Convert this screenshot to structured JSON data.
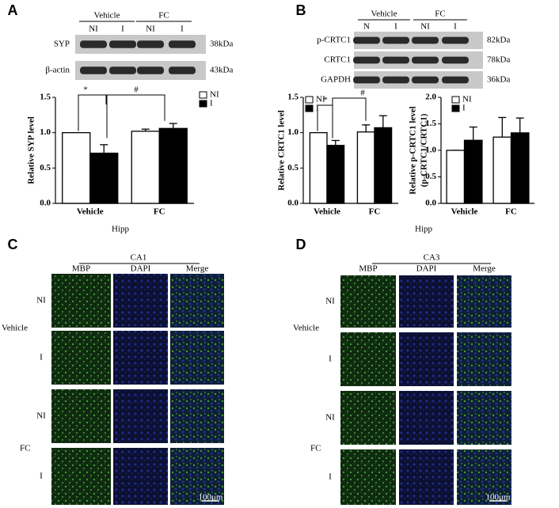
{
  "panels": [
    "A",
    "B",
    "C",
    "D"
  ],
  "blots": [
    {
      "groups": [
        "Vehicle",
        "FC"
      ],
      "lanes": [
        "NI",
        "I",
        "NI",
        "I"
      ],
      "rows": [
        {
          "label": "SYP",
          "size": "38kDa"
        },
        {
          "label": "β-actin",
          "size": "43kDa"
        }
      ]
    },
    {
      "groups": [
        "Vehicle",
        "FC"
      ],
      "lanes": [
        "N",
        "I",
        "NI",
        "I"
      ],
      "rows": [
        {
          "label": "p-CRTC1",
          "size": "82kDa"
        },
        {
          "label": "CRTC1",
          "size": "78kDa"
        },
        {
          "label": "GAPDH",
          "size": "36kDa"
        }
      ]
    }
  ],
  "chart_data": [
    {
      "type": "bar",
      "ylabel": [
        "Relative SYP level"
      ],
      "xlabel": "Hipp",
      "categories": [
        "Vehicle",
        "FC"
      ],
      "series": [
        {
          "name": "NI",
          "color": "#ffffff",
          "values": [
            1.0,
            1.02
          ],
          "errors": [
            0,
            0.03
          ]
        },
        {
          "name": "I",
          "color": "#000000",
          "values": [
            0.71,
            1.06
          ],
          "errors": [
            0.12,
            0.07
          ]
        }
      ],
      "ylim": [
        0,
        1.5
      ],
      "yticks": [
        {
          "value": 0,
          "label": "0.0"
        },
        0.5,
        {
          "value": 1,
          "label": "1.0"
        },
        1.5
      ],
      "legend": "top-right",
      "annotations": [
        "*",
        "#"
      ]
    },
    {
      "type": "bar",
      "ylabel": [
        "Relative CRTC1 level"
      ],
      "xlabel": "Hipp",
      "categories": [
        "Vehicle",
        "FC"
      ],
      "series": [
        {
          "name": "NI",
          "color": "#ffffff",
          "values": [
            1.0,
            1.01
          ],
          "errors": [
            0,
            0.1
          ]
        },
        {
          "name": "I",
          "color": "#000000",
          "values": [
            0.82,
            1.07
          ],
          "errors": [
            0.07,
            0.17
          ]
        }
      ],
      "ylim": [
        0,
        1.5
      ],
      "yticks": [
        {
          "value": 0,
          "label": "0.0"
        },
        0.5,
        {
          "value": 1,
          "label": "1.0"
        },
        1.5
      ],
      "legend": "top-left",
      "annotations": [
        "*",
        "#"
      ]
    },
    {
      "type": "bar",
      "ylabel": [
        "Relative p-CRTC1 level",
        "(p-CRTC1/CRTC1)"
      ],
      "categories": [
        "Vehicle",
        "FC"
      ],
      "series": [
        {
          "name": "NI",
          "color": "#ffffff",
          "values": [
            1.0,
            1.25
          ],
          "errors": [
            0,
            0.37
          ]
        },
        {
          "name": "I",
          "color": "#000000",
          "values": [
            1.19,
            1.33
          ],
          "errors": [
            0.25,
            0.28
          ]
        }
      ],
      "ylim": [
        0,
        2
      ],
      "yticks": [
        {
          "value": 0,
          "label": "0.0"
        },
        0.5,
        {
          "value": 1,
          "label": "1.0"
        },
        1.5,
        {
          "value": 2,
          "label": "2.0"
        }
      ],
      "legend": "top-left"
    }
  ],
  "micrographs": [
    {
      "region": "CA1",
      "columns": [
        "MBP",
        "DAPI",
        "Merge"
      ],
      "rows": [
        "NI",
        "I",
        "NI",
        "I"
      ],
      "groups": [
        "Vehicle",
        "FC"
      ],
      "scale": "100μm"
    },
    {
      "region": "CA3",
      "columns": [
        "MBP",
        "DAPI",
        "Merge"
      ],
      "rows": [
        "NI",
        "I",
        "NI",
        "I"
      ],
      "groups": [
        "Vehicle",
        "FC"
      ],
      "scale": "100μm"
    }
  ]
}
